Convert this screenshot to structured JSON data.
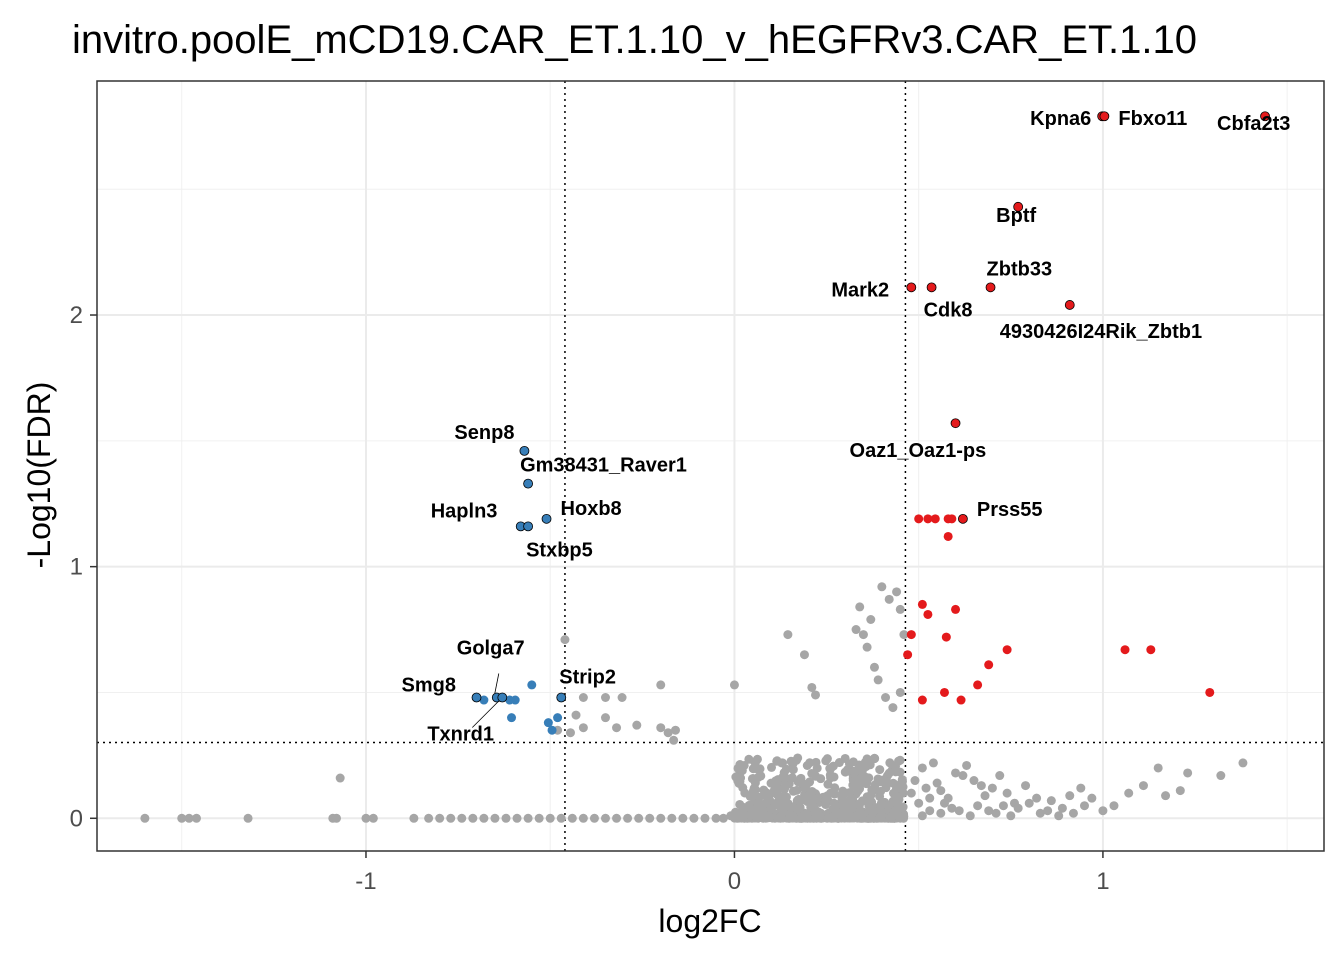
{
  "chart_data": {
    "type": "scatter",
    "title": "invitro.poolE_mCD19.CAR_ET.1.10_v_hEGFRv3.CAR_ET.1.10",
    "xlabel": "log2FC",
    "ylabel": "-Log10(FDR)",
    "xlim": [
      -1.73,
      1.6
    ],
    "ylim": [
      -0.13,
      2.93
    ],
    "x_ticks": [
      -1,
      0,
      1
    ],
    "y_ticks": [
      0,
      1,
      2
    ],
    "x_tick_labels": [
      "-1",
      "0",
      "1"
    ],
    "y_tick_labels": [
      "0",
      "1",
      "2"
    ],
    "grid": true,
    "thresholds": {
      "fc_low": -0.46,
      "fc_high": 0.464,
      "fdr": 0.301
    },
    "colors": {
      "up": "#e41a1c",
      "down": "#377eb8",
      "ns": "#a6a6a6",
      "background": "#ffffff"
    },
    "labeled_points": [
      {
        "gene": "Kpna6",
        "x": 0.998,
        "y": 2.79,
        "dir": "up"
      },
      {
        "gene": "Fbxo11",
        "x": 1.004,
        "y": 2.79,
        "dir": "up"
      },
      {
        "gene": "Cbfa2t3",
        "x": 1.44,
        "y": 2.79,
        "dir": "up"
      },
      {
        "gene": "Bptf",
        "x": 0.77,
        "y": 2.43,
        "dir": "up"
      },
      {
        "gene": "Zbtb33",
        "x": 0.695,
        "y": 2.11,
        "dir": "up"
      },
      {
        "gene": "Mark2",
        "x": 0.48,
        "y": 2.11,
        "dir": "up"
      },
      {
        "gene": "Cdk8",
        "x": 0.535,
        "y": 2.11,
        "dir": "up"
      },
      {
        "gene": "4930426I24Rik_Zbtb1",
        "x": 0.91,
        "y": 2.04,
        "dir": "up"
      },
      {
        "gene": "Oaz1_Oaz1-ps",
        "x": 0.6,
        "y": 1.57,
        "dir": "up"
      },
      {
        "gene": "Prss55",
        "x": 0.62,
        "y": 1.19,
        "dir": "up"
      },
      {
        "gene": "Senp8",
        "x": -0.57,
        "y": 1.46,
        "dir": "down"
      },
      {
        "gene": "Gm38431_Raver1",
        "x": -0.56,
        "y": 1.33,
        "dir": "down"
      },
      {
        "gene": "Hoxb8",
        "x": -0.51,
        "y": 1.19,
        "dir": "down"
      },
      {
        "gene": "Hapln3",
        "x": -0.58,
        "y": 1.16,
        "dir": "down"
      },
      {
        "gene": "Stxbp5",
        "x": -0.56,
        "y": 1.16,
        "dir": "down"
      },
      {
        "gene": "Golga7",
        "x": -0.645,
        "y": 0.48,
        "dir": "down"
      },
      {
        "gene": "Strip2",
        "x": -0.47,
        "y": 0.48,
        "dir": "down"
      },
      {
        "gene": "Smg8",
        "x": -0.7,
        "y": 0.48,
        "dir": "down"
      },
      {
        "gene": "Txnrd1",
        "x": -0.63,
        "y": 0.48,
        "dir": "down"
      }
    ],
    "up_points": [
      [
        0.5,
        1.19
      ],
      [
        0.525,
        1.19
      ],
      [
        0.545,
        1.19
      ],
      [
        0.58,
        1.19
      ],
      [
        0.59,
        1.19
      ],
      [
        0.58,
        1.12
      ],
      [
        0.51,
        0.85
      ],
      [
        0.6,
        0.83
      ],
      [
        0.525,
        0.81
      ],
      [
        0.48,
        0.73
      ],
      [
        0.575,
        0.72
      ],
      [
        0.74,
        0.67
      ],
      [
        1.06,
        0.67
      ],
      [
        1.13,
        0.67
      ],
      [
        0.47,
        0.65
      ],
      [
        0.69,
        0.61
      ],
      [
        0.66,
        0.53
      ],
      [
        0.57,
        0.5
      ],
      [
        0.51,
        0.47
      ],
      [
        0.615,
        0.47
      ],
      [
        1.29,
        0.5
      ]
    ],
    "down_points": [
      [
        -0.55,
        0.53
      ],
      [
        -0.68,
        0.47
      ],
      [
        -0.61,
        0.47
      ],
      [
        -0.595,
        0.47
      ],
      [
        -0.605,
        0.4
      ],
      [
        -0.505,
        0.38
      ],
      [
        -0.48,
        0.4
      ],
      [
        -0.495,
        0.35
      ]
    ],
    "ns_points": [
      [
        -0.46,
        0.71
      ],
      [
        -0.2,
        0.53
      ],
      [
        -0.47,
        0.48
      ],
      [
        -0.41,
        0.48
      ],
      [
        -0.35,
        0.48
      ],
      [
        -0.305,
        0.48
      ],
      [
        -0.43,
        0.41
      ],
      [
        -0.35,
        0.4
      ],
      [
        -0.32,
        0.36
      ],
      [
        -0.265,
        0.37
      ],
      [
        -0.2,
        0.36
      ],
      [
        -0.18,
        0.34
      ],
      [
        -0.16,
        0.35
      ],
      [
        -0.48,
        0.35
      ],
      [
        -0.445,
        0.34
      ],
      [
        -0.41,
        0.36
      ],
      [
        -0.165,
        0.31
      ],
      [
        0.0,
        0.53
      ],
      [
        0.145,
        0.73
      ],
      [
        0.19,
        0.65
      ],
      [
        0.21,
        0.52
      ],
      [
        0.22,
        0.49
      ],
      [
        0.33,
        0.75
      ],
      [
        0.34,
        0.84
      ],
      [
        0.35,
        0.73
      ],
      [
        0.36,
        0.68
      ],
      [
        0.37,
        0.79
      ],
      [
        0.38,
        0.6
      ],
      [
        0.4,
        0.92
      ],
      [
        0.42,
        0.87
      ],
      [
        0.39,
        0.55
      ],
      [
        0.41,
        0.48
      ],
      [
        0.44,
        0.9
      ],
      [
        0.45,
        0.83
      ],
      [
        0.46,
        0.73
      ],
      [
        0.45,
        0.5
      ],
      [
        0.43,
        0.44
      ],
      [
        -1.07,
        0.16
      ],
      [
        -1.6,
        0.0
      ],
      [
        -1.5,
        0.0
      ],
      [
        -1.48,
        0.0
      ],
      [
        -1.46,
        0.0
      ],
      [
        -1.32,
        0.0
      ],
      [
        -1.09,
        0.0
      ],
      [
        -1.08,
        0.0
      ],
      [
        -1.0,
        0.0
      ],
      [
        -0.98,
        0.0
      ],
      [
        -0.87,
        0.0
      ],
      [
        -0.83,
        0.0
      ],
      [
        -0.8,
        0.0
      ],
      [
        -0.77,
        0.0
      ],
      [
        -0.74,
        0.0
      ],
      [
        -0.71,
        0.0
      ],
      [
        -0.68,
        0.0
      ],
      [
        -0.65,
        0.0
      ],
      [
        -0.62,
        0.0
      ],
      [
        -0.59,
        0.0
      ],
      [
        -0.56,
        0.0
      ],
      [
        -0.53,
        0.0
      ],
      [
        -0.5,
        0.0
      ],
      [
        -0.47,
        0.0
      ],
      [
        -0.44,
        0.0
      ],
      [
        -0.41,
        0.0
      ],
      [
        -0.38,
        0.0
      ],
      [
        -0.35,
        0.0
      ],
      [
        -0.32,
        0.0
      ],
      [
        -0.29,
        0.0
      ],
      [
        -0.26,
        0.0
      ],
      [
        -0.23,
        0.0
      ],
      [
        -0.2,
        0.0
      ],
      [
        -0.17,
        0.0
      ],
      [
        -0.14,
        0.0
      ],
      [
        -0.11,
        0.0
      ],
      [
        -0.08,
        0.0
      ],
      [
        -0.05,
        0.0
      ],
      [
        -0.03,
        0.0
      ],
      [
        -0.01,
        0.01
      ],
      [
        0.51,
        0.2
      ],
      [
        0.54,
        0.22
      ],
      [
        0.55,
        0.14
      ],
      [
        0.56,
        0.11
      ],
      [
        0.58,
        0.08
      ],
      [
        0.6,
        0.18
      ],
      [
        0.62,
        0.17
      ],
      [
        0.63,
        0.21
      ],
      [
        0.65,
        0.15
      ],
      [
        0.67,
        0.13
      ],
      [
        0.68,
        0.09
      ],
      [
        0.7,
        0.12
      ],
      [
        0.72,
        0.17
      ],
      [
        0.74,
        0.1
      ],
      [
        0.76,
        0.06
      ],
      [
        0.79,
        0.13
      ],
      [
        0.82,
        0.08
      ],
      [
        0.85,
        0.03
      ],
      [
        0.88,
        0.01
      ],
      [
        0.91,
        0.09
      ],
      [
        0.94,
        0.12
      ],
      [
        0.97,
        0.08
      ],
      [
        1.0,
        0.03
      ],
      [
        1.03,
        0.05
      ],
      [
        1.07,
        0.1
      ],
      [
        1.11,
        0.13
      ],
      [
        1.15,
        0.2
      ],
      [
        1.23,
        0.18
      ],
      [
        1.32,
        0.17
      ],
      [
        1.38,
        0.22
      ],
      [
        1.21,
        0.11
      ],
      [
        1.17,
        0.09
      ],
      [
        0.59,
        0.04
      ],
      [
        0.61,
        0.03
      ],
      [
        0.64,
        0.01
      ],
      [
        0.66,
        0.05
      ],
      [
        0.69,
        0.03
      ],
      [
        0.71,
        0.02
      ],
      [
        0.73,
        0.05
      ],
      [
        0.75,
        0.01
      ],
      [
        0.77,
        0.04
      ],
      [
        0.8,
        0.06
      ],
      [
        0.83,
        0.02
      ],
      [
        0.86,
        0.07
      ],
      [
        0.89,
        0.04
      ],
      [
        0.92,
        0.02
      ],
      [
        0.95,
        0.05
      ],
      [
        0.53,
        0.08
      ],
      [
        0.52,
        0.12
      ],
      [
        0.57,
        0.06
      ],
      [
        0.5,
        0.06
      ],
      [
        0.49,
        0.15
      ],
      [
        0.48,
        0.1
      ],
      [
        0.53,
        0.03
      ],
      [
        0.56,
        0.02
      ],
      [
        0.51,
        0.01
      ]
    ],
    "dense_cloud": {
      "x_range": [
        0.0,
        0.46
      ],
      "y_max": 0.24,
      "count": 900,
      "color": "#a6a6a6"
    }
  }
}
